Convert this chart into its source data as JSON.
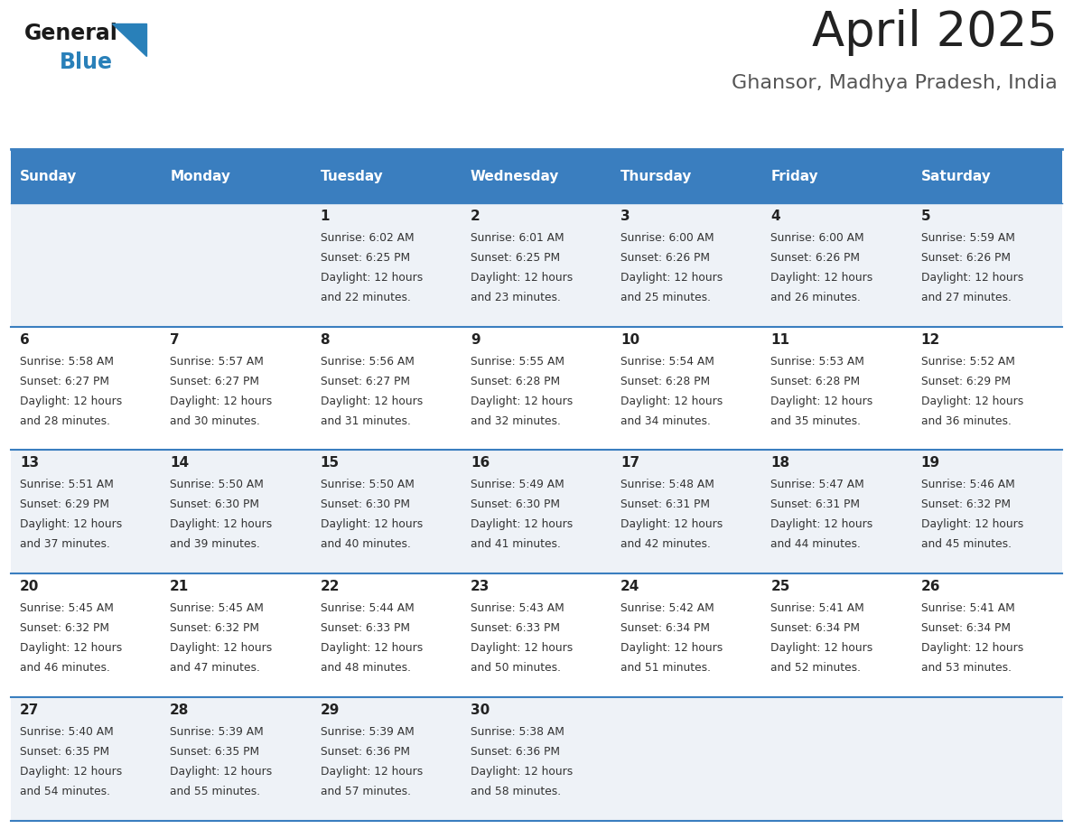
{
  "title": "April 2025",
  "subtitle": "Ghansor, Madhya Pradesh, India",
  "days_of_week": [
    "Sunday",
    "Monday",
    "Tuesday",
    "Wednesday",
    "Thursday",
    "Friday",
    "Saturday"
  ],
  "header_bg": "#3a7ebf",
  "header_text": "#ffffff",
  "row_bg_odd": "#eef2f7",
  "row_bg_even": "#ffffff",
  "cell_border": "#3a7ebf",
  "day_number_color": "#222222",
  "text_color": "#333333",
  "title_color": "#222222",
  "subtitle_color": "#555555",
  "logo_general_color": "#1a1a1a",
  "logo_blue_color": "#2980b9",
  "weeks": [
    [
      {
        "day": null,
        "sunrise": null,
        "sunset": null,
        "daylight": null
      },
      {
        "day": null,
        "sunrise": null,
        "sunset": null,
        "daylight": null
      },
      {
        "day": 1,
        "sunrise": "6:02 AM",
        "sunset": "6:25 PM",
        "daylight": "12 hours and 22 minutes."
      },
      {
        "day": 2,
        "sunrise": "6:01 AM",
        "sunset": "6:25 PM",
        "daylight": "12 hours and 23 minutes."
      },
      {
        "day": 3,
        "sunrise": "6:00 AM",
        "sunset": "6:26 PM",
        "daylight": "12 hours and 25 minutes."
      },
      {
        "day": 4,
        "sunrise": "6:00 AM",
        "sunset": "6:26 PM",
        "daylight": "12 hours and 26 minutes."
      },
      {
        "day": 5,
        "sunrise": "5:59 AM",
        "sunset": "6:26 PM",
        "daylight": "12 hours and 27 minutes."
      }
    ],
    [
      {
        "day": 6,
        "sunrise": "5:58 AM",
        "sunset": "6:27 PM",
        "daylight": "12 hours and 28 minutes."
      },
      {
        "day": 7,
        "sunrise": "5:57 AM",
        "sunset": "6:27 PM",
        "daylight": "12 hours and 30 minutes."
      },
      {
        "day": 8,
        "sunrise": "5:56 AM",
        "sunset": "6:27 PM",
        "daylight": "12 hours and 31 minutes."
      },
      {
        "day": 9,
        "sunrise": "5:55 AM",
        "sunset": "6:28 PM",
        "daylight": "12 hours and 32 minutes."
      },
      {
        "day": 10,
        "sunrise": "5:54 AM",
        "sunset": "6:28 PM",
        "daylight": "12 hours and 34 minutes."
      },
      {
        "day": 11,
        "sunrise": "5:53 AM",
        "sunset": "6:28 PM",
        "daylight": "12 hours and 35 minutes."
      },
      {
        "day": 12,
        "sunrise": "5:52 AM",
        "sunset": "6:29 PM",
        "daylight": "12 hours and 36 minutes."
      }
    ],
    [
      {
        "day": 13,
        "sunrise": "5:51 AM",
        "sunset": "6:29 PM",
        "daylight": "12 hours and 37 minutes."
      },
      {
        "day": 14,
        "sunrise": "5:50 AM",
        "sunset": "6:30 PM",
        "daylight": "12 hours and 39 minutes."
      },
      {
        "day": 15,
        "sunrise": "5:50 AM",
        "sunset": "6:30 PM",
        "daylight": "12 hours and 40 minutes."
      },
      {
        "day": 16,
        "sunrise": "5:49 AM",
        "sunset": "6:30 PM",
        "daylight": "12 hours and 41 minutes."
      },
      {
        "day": 17,
        "sunrise": "5:48 AM",
        "sunset": "6:31 PM",
        "daylight": "12 hours and 42 minutes."
      },
      {
        "day": 18,
        "sunrise": "5:47 AM",
        "sunset": "6:31 PM",
        "daylight": "12 hours and 44 minutes."
      },
      {
        "day": 19,
        "sunrise": "5:46 AM",
        "sunset": "6:32 PM",
        "daylight": "12 hours and 45 minutes."
      }
    ],
    [
      {
        "day": 20,
        "sunrise": "5:45 AM",
        "sunset": "6:32 PM",
        "daylight": "12 hours and 46 minutes."
      },
      {
        "day": 21,
        "sunrise": "5:45 AM",
        "sunset": "6:32 PM",
        "daylight": "12 hours and 47 minutes."
      },
      {
        "day": 22,
        "sunrise": "5:44 AM",
        "sunset": "6:33 PM",
        "daylight": "12 hours and 48 minutes."
      },
      {
        "day": 23,
        "sunrise": "5:43 AM",
        "sunset": "6:33 PM",
        "daylight": "12 hours and 50 minutes."
      },
      {
        "day": 24,
        "sunrise": "5:42 AM",
        "sunset": "6:34 PM",
        "daylight": "12 hours and 51 minutes."
      },
      {
        "day": 25,
        "sunrise": "5:41 AM",
        "sunset": "6:34 PM",
        "daylight": "12 hours and 52 minutes."
      },
      {
        "day": 26,
        "sunrise": "5:41 AM",
        "sunset": "6:34 PM",
        "daylight": "12 hours and 53 minutes."
      }
    ],
    [
      {
        "day": 27,
        "sunrise": "5:40 AM",
        "sunset": "6:35 PM",
        "daylight": "12 hours and 54 minutes."
      },
      {
        "day": 28,
        "sunrise": "5:39 AM",
        "sunset": "6:35 PM",
        "daylight": "12 hours and 55 minutes."
      },
      {
        "day": 29,
        "sunrise": "5:39 AM",
        "sunset": "6:36 PM",
        "daylight": "12 hours and 57 minutes."
      },
      {
        "day": 30,
        "sunrise": "5:38 AM",
        "sunset": "6:36 PM",
        "daylight": "12 hours and 58 minutes."
      },
      {
        "day": null,
        "sunrise": null,
        "sunset": null,
        "daylight": null
      },
      {
        "day": null,
        "sunrise": null,
        "sunset": null,
        "daylight": null
      },
      {
        "day": null,
        "sunrise": null,
        "sunset": null,
        "daylight": null
      }
    ]
  ],
  "fig_width": 11.88,
  "fig_height": 9.18,
  "dpi": 100
}
